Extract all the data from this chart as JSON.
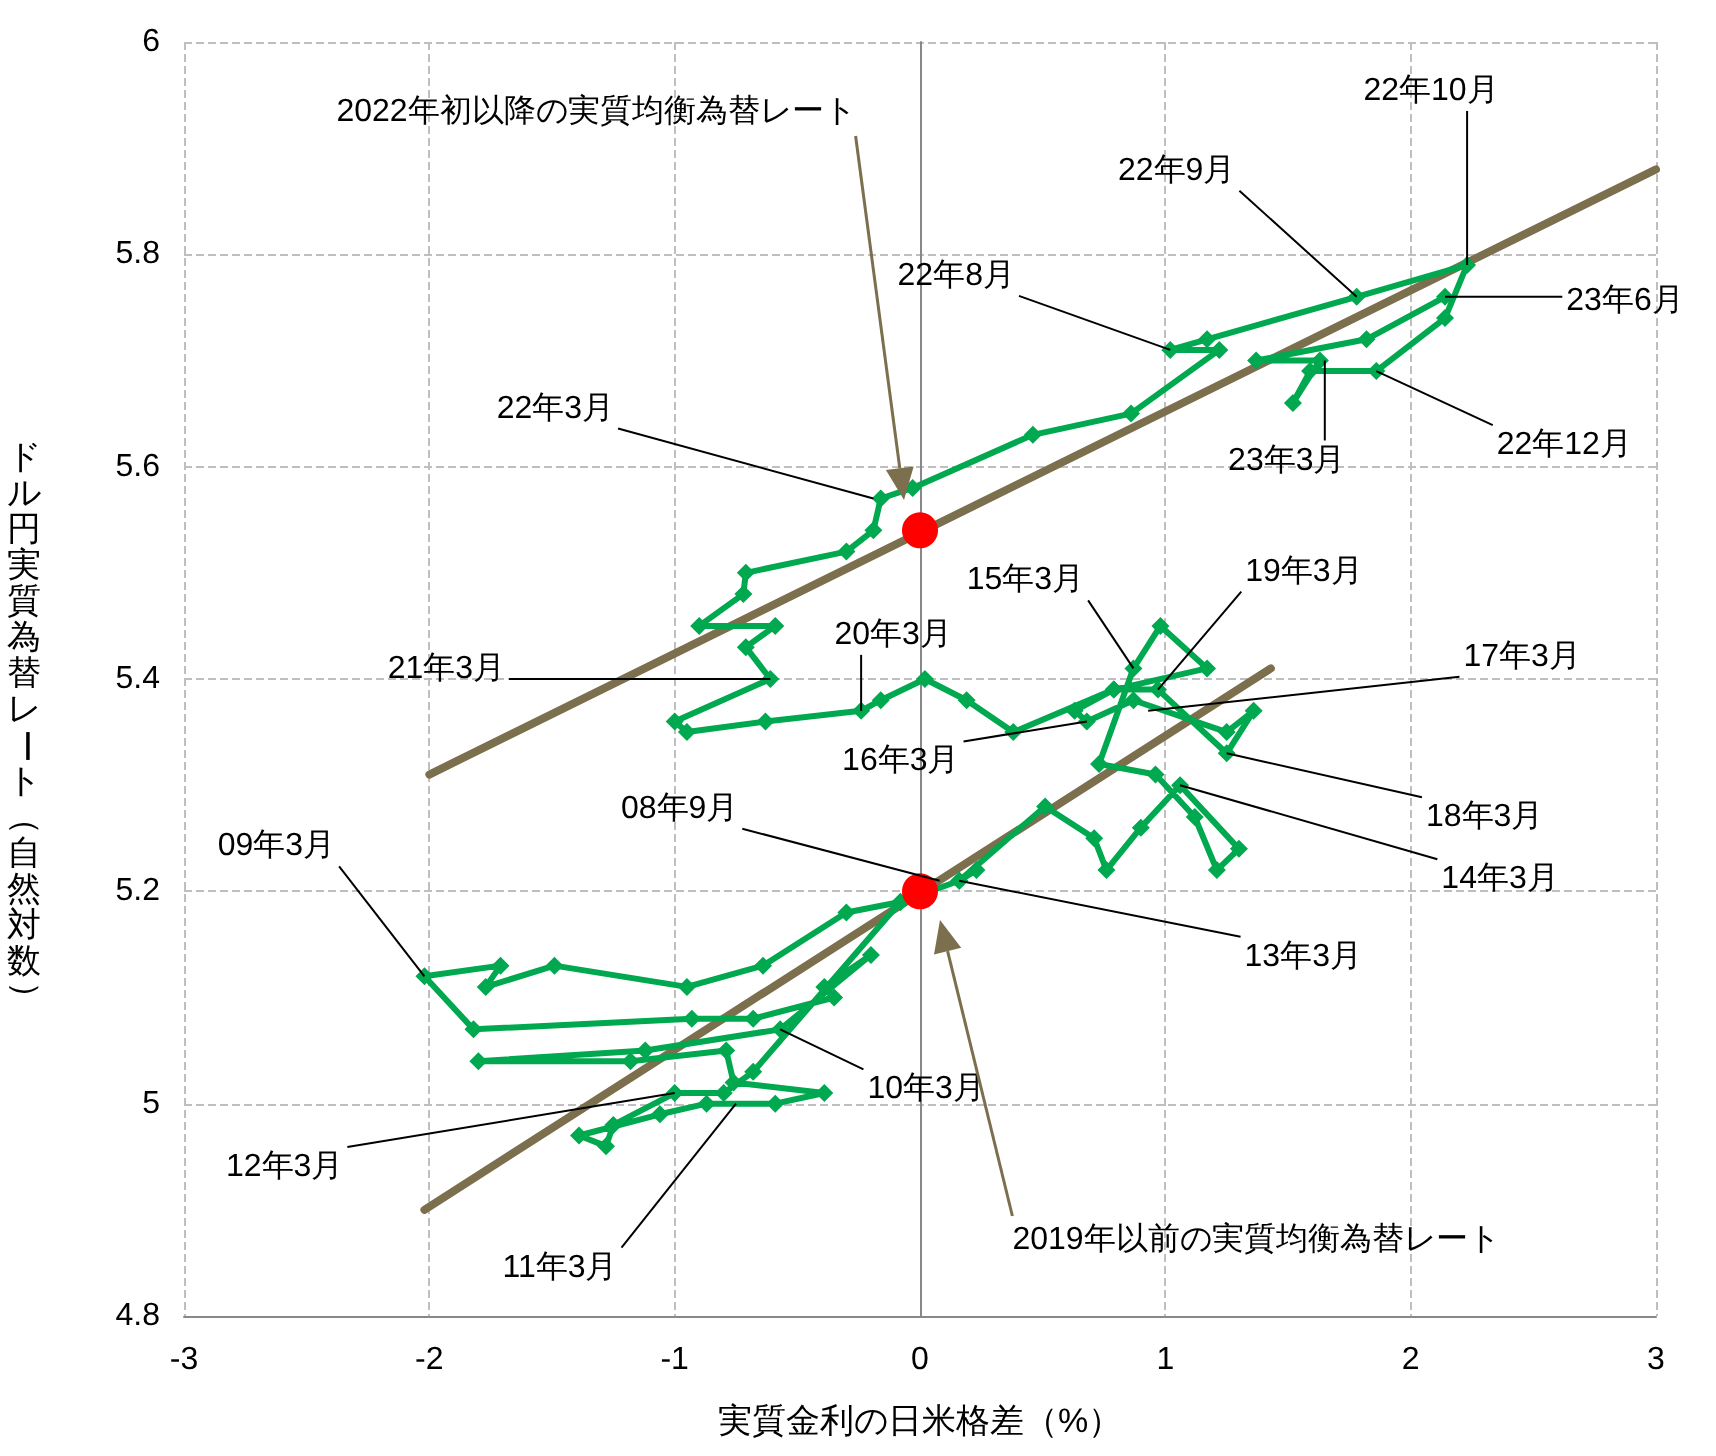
{
  "chart_data": {
    "type": "line",
    "xlabel": "実質金利の日米格差（%）",
    "ylabel": "ドル円実質為替レート（自然対数）",
    "xlim": [
      -3,
      3
    ],
    "xticks": [
      -3,
      -2,
      -1,
      0,
      1,
      2,
      3
    ],
    "ylim": [
      4.8,
      6
    ],
    "yticks": [
      4.8,
      5,
      5.2,
      5.4,
      5.6,
      5.8,
      6
    ],
    "grid": true,
    "marker": "diamond",
    "line_style": "solid",
    "series": [
      {
        "color": "#00a84f",
        "x": [
          0.23,
          0.16,
          -0.08,
          -0.3,
          -0.64,
          -0.95,
          -1.49,
          -1.77,
          -1.71,
          -2.02,
          -1.82,
          -0.93,
          -0.68,
          -0.35,
          -0.39,
          -0.2,
          -0.57,
          -1.12,
          -1.8,
          -1.18,
          -0.79,
          -0.76,
          -0.39,
          -0.59,
          -0.87,
          -1.06,
          -1.39,
          -1.28,
          -1.25,
          -1.0,
          -0.8,
          -0.68,
          -0.08,
          0.16,
          0.51,
          0.71,
          0.76,
          0.9,
          1.06,
          1.3,
          1.21,
          1.12,
          0.96,
          0.73,
          0.87,
          0.98,
          1.17,
          0.79,
          0.63,
          0.68,
          0.87,
          1.25,
          1.36,
          1.25,
          0.97,
          0.79,
          0.38,
          0.19,
          0.02,
          -0.16,
          -0.24,
          -0.63,
          -0.95,
          -1.0,
          -0.61,
          -0.71,
          -0.59,
          -0.9,
          -0.72,
          -0.71,
          -0.3,
          -0.19,
          -0.16,
          -0.03,
          0.46,
          0.86,
          1.22,
          1.02,
          1.17,
          1.78,
          2.23,
          2.14,
          1.86,
          1.59,
          1.52,
          1.63,
          1.37,
          1.82,
          2.14
        ],
        "values": [
          5.22,
          5.21,
          5.19,
          5.18,
          5.13,
          5.11,
          5.13,
          5.11,
          5.13,
          5.12,
          5.07,
          5.08,
          5.08,
          5.1,
          5.11,
          5.14,
          5.07,
          5.05,
          5.04,
          5.04,
          5.05,
          5.02,
          5.01,
          5.0,
          5.0,
          4.99,
          4.97,
          4.96,
          4.98,
          5.01,
          5.01,
          5.03,
          5.19,
          5.21,
          5.28,
          5.25,
          5.22,
          5.26,
          5.3,
          5.24,
          5.22,
          5.27,
          5.31,
          5.32,
          5.41,
          5.45,
          5.41,
          5.39,
          5.37,
          5.36,
          5.38,
          5.35,
          5.37,
          5.33,
          5.39,
          5.39,
          5.35,
          5.38,
          5.4,
          5.38,
          5.37,
          5.36,
          5.35,
          5.36,
          5.4,
          5.43,
          5.45,
          5.45,
          5.48,
          5.5,
          5.52,
          5.54,
          5.57,
          5.58,
          5.63,
          5.65,
          5.71,
          5.71,
          5.72,
          5.76,
          5.79,
          5.74,
          5.69,
          5.69,
          5.66,
          5.7,
          5.7,
          5.72,
          5.76
        ]
      },
      {
        "type": "line",
        "color": "#7b6f4d",
        "marker": "none",
        "x": [
          -2.0,
          3.0
        ],
        "values": [
          5.31,
          5.88
        ]
      },
      {
        "type": "line",
        "color": "#7b6f4d",
        "marker": "none",
        "x": [
          -2.02,
          1.43
        ],
        "values": [
          4.9,
          5.41
        ]
      },
      {
        "type": "scatter",
        "color": "#ff0000",
        "marker": "circle",
        "x": [
          0,
          0
        ],
        "values": [
          5.54,
          5.2
        ]
      }
    ],
    "annotations": [
      "2022年初以降の実質均衡為替レート",
      {
        "text": "22年10月",
        "x": 2.23,
        "y": 5.79
      },
      {
        "text": "22年9月",
        "x": 1.78,
        "y": 5.76
      },
      {
        "text": "22年8月",
        "x": 1.02,
        "y": 5.71
      },
      {
        "text": "23年6月",
        "x": 2.14,
        "y": 5.76
      },
      {
        "text": "23年3月",
        "x": 1.65,
        "y": 5.7
      },
      {
        "text": "22年12月",
        "x": 1.86,
        "y": 5.69
      },
      {
        "text": "22年3月",
        "x": -0.19,
        "y": 5.57
      },
      {
        "text": "15年3月",
        "x": 0.87,
        "y": 5.41
      },
      {
        "text": "19年3月",
        "x": 0.97,
        "y": 5.39
      },
      {
        "text": "20年3月",
        "x": -0.24,
        "y": 5.37
      },
      {
        "text": "21年3月",
        "x": -0.61,
        "y": 5.4
      },
      {
        "text": "17年3月",
        "x": 0.93,
        "y": 5.37
      },
      {
        "text": "16年3月",
        "x": 0.68,
        "y": 5.36
      },
      {
        "text": "18年3月",
        "x": 1.25,
        "y": 5.33
      },
      {
        "text": "14年3月",
        "x": 1.06,
        "y": 5.3
      },
      {
        "text": "08年9月",
        "x": 0.08,
        "y": 5.21
      },
      {
        "text": "13年3月",
        "x": 0.16,
        "y": 5.21
      },
      {
        "text": "09年3月",
        "x": -2.02,
        "y": 5.12
      },
      {
        "text": "10年3月",
        "x": -0.57,
        "y": 5.07
      },
      {
        "text": "12年3月",
        "x": -1.0,
        "y": 5.01
      },
      {
        "text": "11年3月",
        "x": -0.75,
        "y": 5.0
      },
      "2019年以前の実質均衡為替レート"
    ]
  }
}
